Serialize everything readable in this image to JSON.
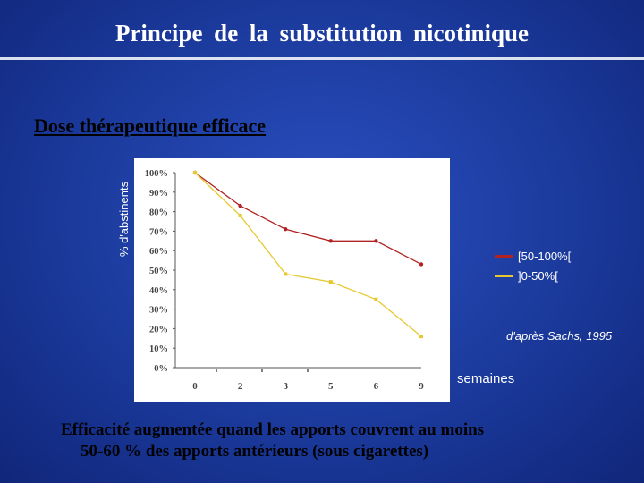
{
  "slide": {
    "title": "Principe  de  la  substitution  nicotinique",
    "subtitle": "Dose thérapeutique efficace",
    "source": "d'après Sachs, 1995",
    "conclusion_line1": "Efficacité augmentée quand les apports couvrent au moins",
    "conclusion_line2": "50-60 % des apports antérieurs (sous cigarettes)"
  },
  "colors": {
    "background": "#1b3a9c",
    "series_high": "#b22222",
    "series_low": "#e8c830",
    "plot_area": "#ffffff"
  },
  "chart_data": {
    "type": "line",
    "title": "",
    "xlabel": "semaines",
    "ylabel": "% d'abstinents",
    "categories": [
      "0",
      "2",
      "3",
      "5",
      "6",
      "9"
    ],
    "ylim": [
      0,
      100
    ],
    "yticks": [
      "0%",
      "10%",
      "20%",
      "30%",
      "40%",
      "50%",
      "60%",
      "70%",
      "80%",
      "90%",
      "100%"
    ],
    "grid": false,
    "legend_position": "right",
    "series": [
      {
        "name": "[50-100%[",
        "values": [
          100,
          83,
          71,
          65,
          65,
          53
        ]
      },
      {
        "name": "]0-50%[",
        "values": [
          100,
          78,
          48,
          44,
          35,
          16
        ]
      }
    ]
  }
}
